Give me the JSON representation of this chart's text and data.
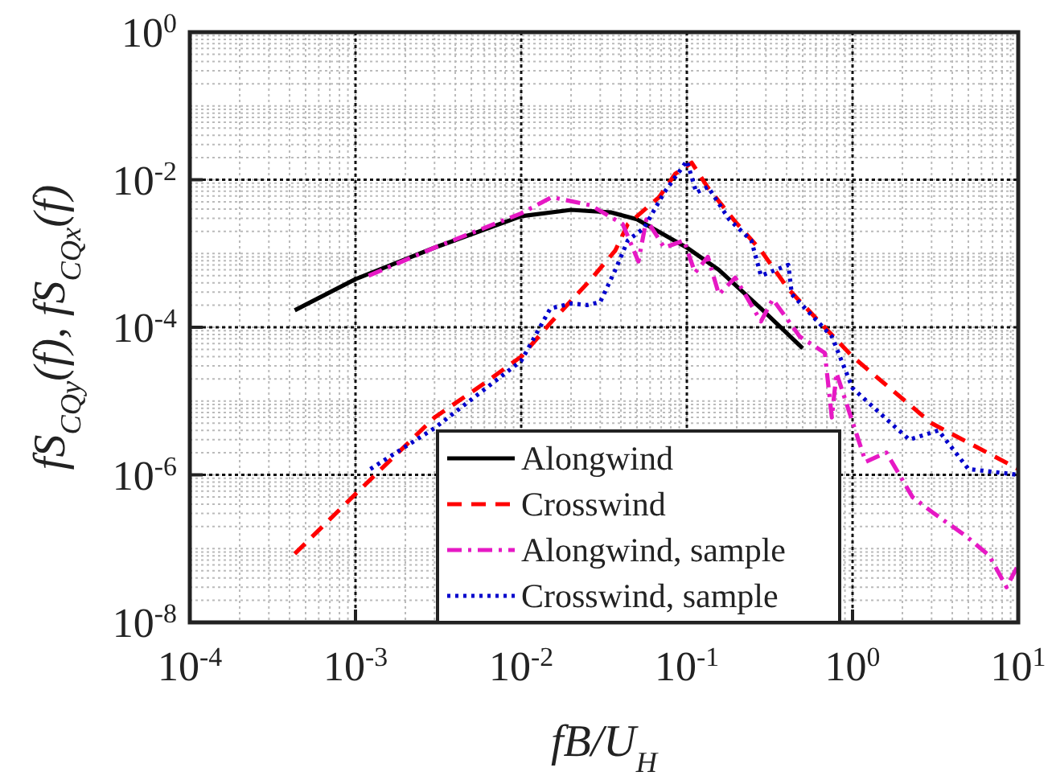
{
  "chart_data": {
    "type": "line",
    "xlabel": "fB/U$_{H}$",
    "ylabel": "fS$_{CQy}$(f), fS$_{CQx}$(f)",
    "log": "xy",
    "grid": true,
    "legend": "bottom",
    "xlim": [
      0.0001,
      10
    ],
    "ylim": [
      1e-08,
      1
    ],
    "xticks": [
      {
        "value": 0.0001,
        "label": "10$^{-4}$"
      },
      {
        "value": 0.001,
        "label": "10$^{-3}$"
      },
      {
        "value": 0.01,
        "label": "10$^{-2}$"
      },
      {
        "value": 0.1,
        "label": "10$^{-1}$"
      },
      {
        "value": 1,
        "label": "10$^{0}$"
      },
      {
        "value": 10,
        "label": "10$^{1}$"
      }
    ],
    "yticks": [
      {
        "value": 1e-08,
        "label": "10$^{-8}$"
      },
      {
        "value": 1e-06,
        "label": "10$^{-6}$"
      },
      {
        "value": 0.0001,
        "label": "10$^{-4}$"
      },
      {
        "value": 0.01,
        "label": "10$^{-2}$"
      },
      {
        "value": 1,
        "label": "10$^{0}$"
      }
    ],
    "series": [
      {
        "name": "Alongwind",
        "color": "#000000",
        "line_style": "solid",
        "x": [
          0.00043,
          0.001,
          0.003,
          0.01,
          0.02,
          0.035,
          0.05,
          0.1,
          0.156,
          0.28,
          0.5
        ],
        "values": [
          0.00017,
          0.00045,
          0.0012,
          0.0032,
          0.0039,
          0.0036,
          0.0029,
          0.0012,
          0.0006,
          0.00018,
          5.2e-05
        ]
      },
      {
        "name": "Crosswind",
        "color": "#ff0000",
        "line_style": "dashed",
        "x": [
          0.00043,
          0.001,
          0.003,
          0.0059,
          0.01,
          0.0153,
          0.026,
          0.037,
          0.044,
          0.068,
          0.085,
          0.107,
          0.134,
          0.196,
          0.28,
          0.41,
          1,
          3,
          10
        ],
        "values": [
          8.5e-08,
          5.5e-07,
          6e-06,
          1.7e-05,
          4e-05,
          0.00012,
          0.00043,
          0.0011,
          0.0025,
          0.0058,
          0.012,
          0.017,
          0.0078,
          0.0027,
          0.0011,
          0.00033,
          4e-05,
          5e-06,
          1.2e-06
        ]
      },
      {
        "name": "Alongwind, sample",
        "color": "#e619c4",
        "line_style": "dashdot",
        "x": [
          0.0012,
          0.003,
          0.01,
          0.0153,
          0.0263,
          0.041,
          0.051,
          0.057,
          0.073,
          0.096,
          0.112,
          0.134,
          0.156,
          0.196,
          0.28,
          0.33,
          0.48,
          0.68,
          0.75,
          0.8,
          1.2,
          1.6,
          2.3,
          3.1,
          4.8,
          6.7,
          8.5,
          10
        ],
        "values": [
          0.0005,
          0.0012,
          0.0035,
          0.0058,
          0.0045,
          0.0025,
          0.00078,
          0.0029,
          0.0012,
          0.0015,
          0.00055,
          0.0009,
          0.00028,
          0.00047,
          0.00012,
          0.00024,
          7.5e-05,
          4.5e-05,
          6e-06,
          2.4e-05,
          1.5e-06,
          2e-06,
          5e-07,
          3e-07,
          1.5e-07,
          8e-08,
          3e-08,
          6e-08
        ]
      },
      {
        "name": "Crosswind, sample",
        "color": "#0000cc",
        "line_style": "dotted",
        "x": [
          0.00123,
          0.003,
          0.01,
          0.015,
          0.02,
          0.025,
          0.03,
          0.037,
          0.044,
          0.055,
          0.073,
          0.1,
          0.114,
          0.134,
          0.18,
          0.245,
          0.28,
          0.41,
          0.43,
          0.75,
          1,
          1.56,
          2.2,
          3.3,
          5,
          10
        ],
        "values": [
          1.2e-06,
          4.3e-06,
          3.5e-05,
          0.00018,
          0.00021,
          0.0002,
          0.00022,
          0.0006,
          0.0015,
          0.0022,
          0.0067,
          0.018,
          0.0067,
          0.008,
          0.0029,
          0.0015,
          0.0005,
          0.0007,
          0.00028,
          7.5e-05,
          1.5e-05,
          6e-06,
          3e-06,
          4e-06,
          1.2e-06,
          1e-06
        ]
      }
    ]
  }
}
